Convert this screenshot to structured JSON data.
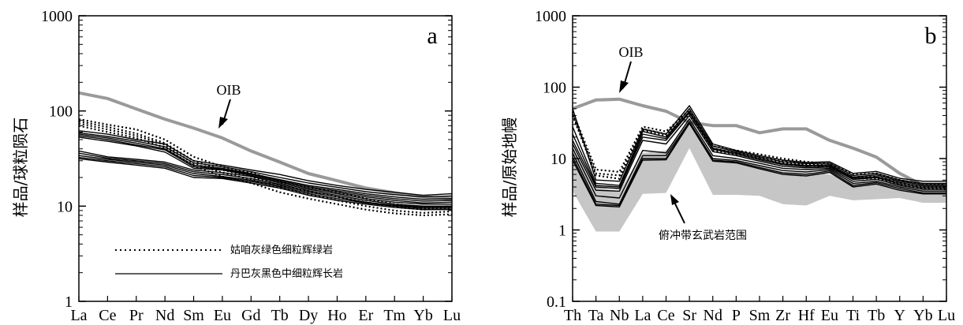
{
  "chart_data": [
    {
      "panel": "a",
      "type": "line",
      "y_scale": "log",
      "ylim": [
        1,
        1000
      ],
      "yticks": [
        "1",
        "10",
        "100",
        "1000"
      ],
      "ylabel": "样品/球粒陨石",
      "categories": [
        "La",
        "Ce",
        "Pr",
        "Nd",
        "Sm",
        "Eu",
        "Gd",
        "Tb",
        "Dy",
        "Ho",
        "Er",
        "Tm",
        "Yb",
        "Lu"
      ],
      "reference": {
        "name": "OIB",
        "values": [
          155,
          135,
          105,
          82,
          66,
          52,
          38,
          29,
          22,
          18.5,
          15.5,
          13.8,
          12.5,
          12
        ]
      },
      "legend": [
        {
          "label": "姑咱灰绿色细粒辉绿岩",
          "style": "dotted"
        },
        {
          "label": "丹巴灰黑色中细粒辉长岩",
          "style": "solid"
        }
      ],
      "series_dotted": [
        {
          "values": [
            82,
            72,
            64,
            50,
            33,
            26,
            22.5,
            18,
            16,
            14,
            12,
            10.5,
            9.8,
            9.8
          ]
        },
        {
          "values": [
            78,
            68,
            58,
            46,
            30,
            24,
            20.5,
            16.5,
            14.5,
            12.5,
            11,
            9.8,
            9.2,
            9.5
          ]
        },
        {
          "values": [
            74,
            64,
            55,
            44,
            28,
            22.5,
            19,
            15.5,
            13.5,
            11.5,
            10,
            9,
            8.5,
            8.8
          ]
        },
        {
          "values": [
            70,
            60,
            52,
            41,
            26.5,
            20.5,
            17.5,
            14,
            12,
            10.5,
            9.2,
            8.4,
            8,
            8.2
          ]
        }
      ],
      "series_solid": [
        {
          "values": [
            62,
            57,
            50,
            45,
            30,
            27,
            24,
            21.5,
            18.5,
            16.5,
            15,
            14,
            13,
            13.5
          ]
        },
        {
          "values": [
            59,
            54,
            48,
            42,
            28.5,
            26,
            23,
            20,
            17.5,
            15.8,
            14.2,
            13.2,
            12.5,
            12.8
          ]
        },
        {
          "values": [
            57,
            52,
            46,
            40,
            27,
            25,
            22,
            19,
            16.5,
            15,
            13.5,
            12.5,
            11.8,
            12
          ]
        },
        {
          "values": [
            55,
            50,
            44,
            39,
            26,
            24.5,
            21.5,
            18.5,
            16,
            14.5,
            13,
            12,
            11.3,
            11.5
          ]
        },
        {
          "values": [
            53,
            48,
            43,
            37,
            25,
            24,
            21,
            18,
            15.5,
            14,
            12.5,
            11.5,
            10.8,
            11
          ]
        },
        {
          "values": [
            38,
            33,
            31,
            29,
            24,
            22.5,
            20.5,
            17.5,
            15,
            13.5,
            12,
            11,
            10.5,
            10.5
          ]
        },
        {
          "values": [
            36,
            32,
            30,
            28,
            23,
            21.5,
            19.5,
            17,
            14.5,
            13,
            11.5,
            10.5,
            10,
            10
          ]
        },
        {
          "values": [
            34,
            31,
            29,
            27,
            22,
            20.5,
            18.8,
            16.5,
            14,
            12.5,
            11,
            10.2,
            9.8,
            9.8
          ]
        },
        {
          "values": [
            32.5,
            30,
            28,
            26,
            21,
            20,
            18.2,
            16,
            13.5,
            12,
            10.8,
            10,
            9.5,
            9.5
          ]
        },
        {
          "values": [
            31.5,
            29,
            27,
            25,
            20,
            19.5,
            17.5,
            15.5,
            13,
            11.5,
            10.5,
            9.7,
            9.2,
            9.2
          ]
        }
      ]
    },
    {
      "panel": "b",
      "type": "line",
      "y_scale": "log",
      "ylim": [
        0.1,
        1000
      ],
      "yticks": [
        "0.1",
        "1",
        "10",
        "100",
        "1000"
      ],
      "ylabel": "样品/原始地幔",
      "categories": [
        "Th",
        "Ta",
        "Nb",
        "La",
        "Ce",
        "Sr",
        "Nd",
        "P",
        "Sm",
        "Zr",
        "Hf",
        "Eu",
        "Ti",
        "Tb",
        "Y",
        "Yb",
        "Lu"
      ],
      "reference": {
        "name": "OIB",
        "values": [
          50,
          66,
          68,
          55,
          46,
          32,
          29,
          29,
          23,
          26,
          26,
          18,
          14,
          10.5,
          6.2,
          4.2,
          4.2
        ]
      },
      "field": {
        "name": "俯冲带玄武岩范围",
        "upper": [
          14,
          4,
          3.5,
          12,
          13,
          30,
          9.5,
          9,
          8,
          6.5,
          6.5,
          6,
          4.5,
          4.8,
          4.2,
          3.8,
          3.8
        ],
        "lower": [
          3.5,
          0.95,
          0.95,
          3.2,
          3.3,
          14,
          3.1,
          3.1,
          3,
          2.3,
          2.2,
          3,
          2.6,
          2.7,
          2.8,
          2.4,
          2.4
        ]
      },
      "series_dotted": [
        {
          "values": [
            45,
            7,
            6.5,
            28,
            24,
            48,
            15,
            13,
            11.5,
            10,
            9,
            8.5,
            6,
            6.2,
            5,
            4.4,
            4.3
          ]
        },
        {
          "values": [
            42,
            6.2,
            5.8,
            26,
            22,
            44,
            14,
            12,
            10.5,
            9.2,
            8.4,
            8,
            5.5,
            5.6,
            4.6,
            4,
            3.9
          ]
        },
        {
          "values": [
            40,
            5.8,
            5.2,
            25,
            21,
            42,
            13,
            11.5,
            10,
            8.8,
            8,
            7.6,
            5.2,
            5.3,
            4.3,
            3.8,
            3.7
          ]
        }
      ],
      "series_solid": [
        {
          "values": [
            50,
            5,
            4.8,
            26,
            22,
            55,
            16,
            13,
            11,
            9.5,
            8.8,
            9,
            6.2,
            6.6,
            5.3,
            4.8,
            4.8
          ]
        },
        {
          "values": [
            28,
            4.5,
            4.2,
            24,
            20,
            50,
            15,
            12.5,
            10.5,
            9,
            8.5,
            8.6,
            5.8,
            6.2,
            5,
            4.5,
            4.5
          ]
        },
        {
          "values": [
            22,
            4.2,
            4,
            22,
            19,
            46,
            14,
            12,
            10,
            8.5,
            8,
            8.2,
            5.5,
            5.9,
            4.8,
            4.3,
            4.3
          ]
        },
        {
          "values": [
            18,
            4,
            3.8,
            20,
            18,
            44,
            13.5,
            11.5,
            9.6,
            8.2,
            7.7,
            7.9,
            5.3,
            5.6,
            4.6,
            4.1,
            4.1
          ]
        },
        {
          "values": [
            16,
            3.6,
            3.5,
            18,
            16,
            40,
            12.5,
            11,
            9.2,
            7.8,
            7.4,
            7.6,
            5.1,
            5.4,
            4.4,
            3.9,
            3.9
          ]
        },
        {
          "values": [
            14,
            3,
            2.8,
            13,
            12,
            36,
            11,
            10,
            8.6,
            7.3,
            7,
            7.3,
            4.8,
            5.1,
            4.2,
            3.7,
            3.7
          ]
        },
        {
          "values": [
            12,
            2.5,
            2.3,
            11,
            11,
            33,
            10,
            9.4,
            8,
            6.8,
            6.5,
            7,
            4.5,
            4.8,
            4,
            3.5,
            3.5
          ]
        },
        {
          "values": [
            10.5,
            2.3,
            2.2,
            10,
            10,
            32,
            9.5,
            9,
            7.5,
            6.3,
            6,
            6.7,
            4.2,
            4.6,
            3.8,
            3.3,
            3.3
          ]
        },
        {
          "values": [
            9.5,
            2.2,
            2.1,
            9.5,
            9.6,
            31,
            9.2,
            8.7,
            7.2,
            6,
            5.7,
            6.4,
            4,
            4.4,
            3.6,
            3.2,
            3.2
          ]
        }
      ]
    }
  ],
  "annotations": {
    "a_letter": "a",
    "b_letter": "b",
    "oib_a": "OIB",
    "oib_b": "OIB",
    "field_label": "俯冲带玄武岩范围"
  },
  "colors": {
    "reference": "#9a9a9a",
    "field": "#c6c6c6",
    "sample": "#000000"
  }
}
